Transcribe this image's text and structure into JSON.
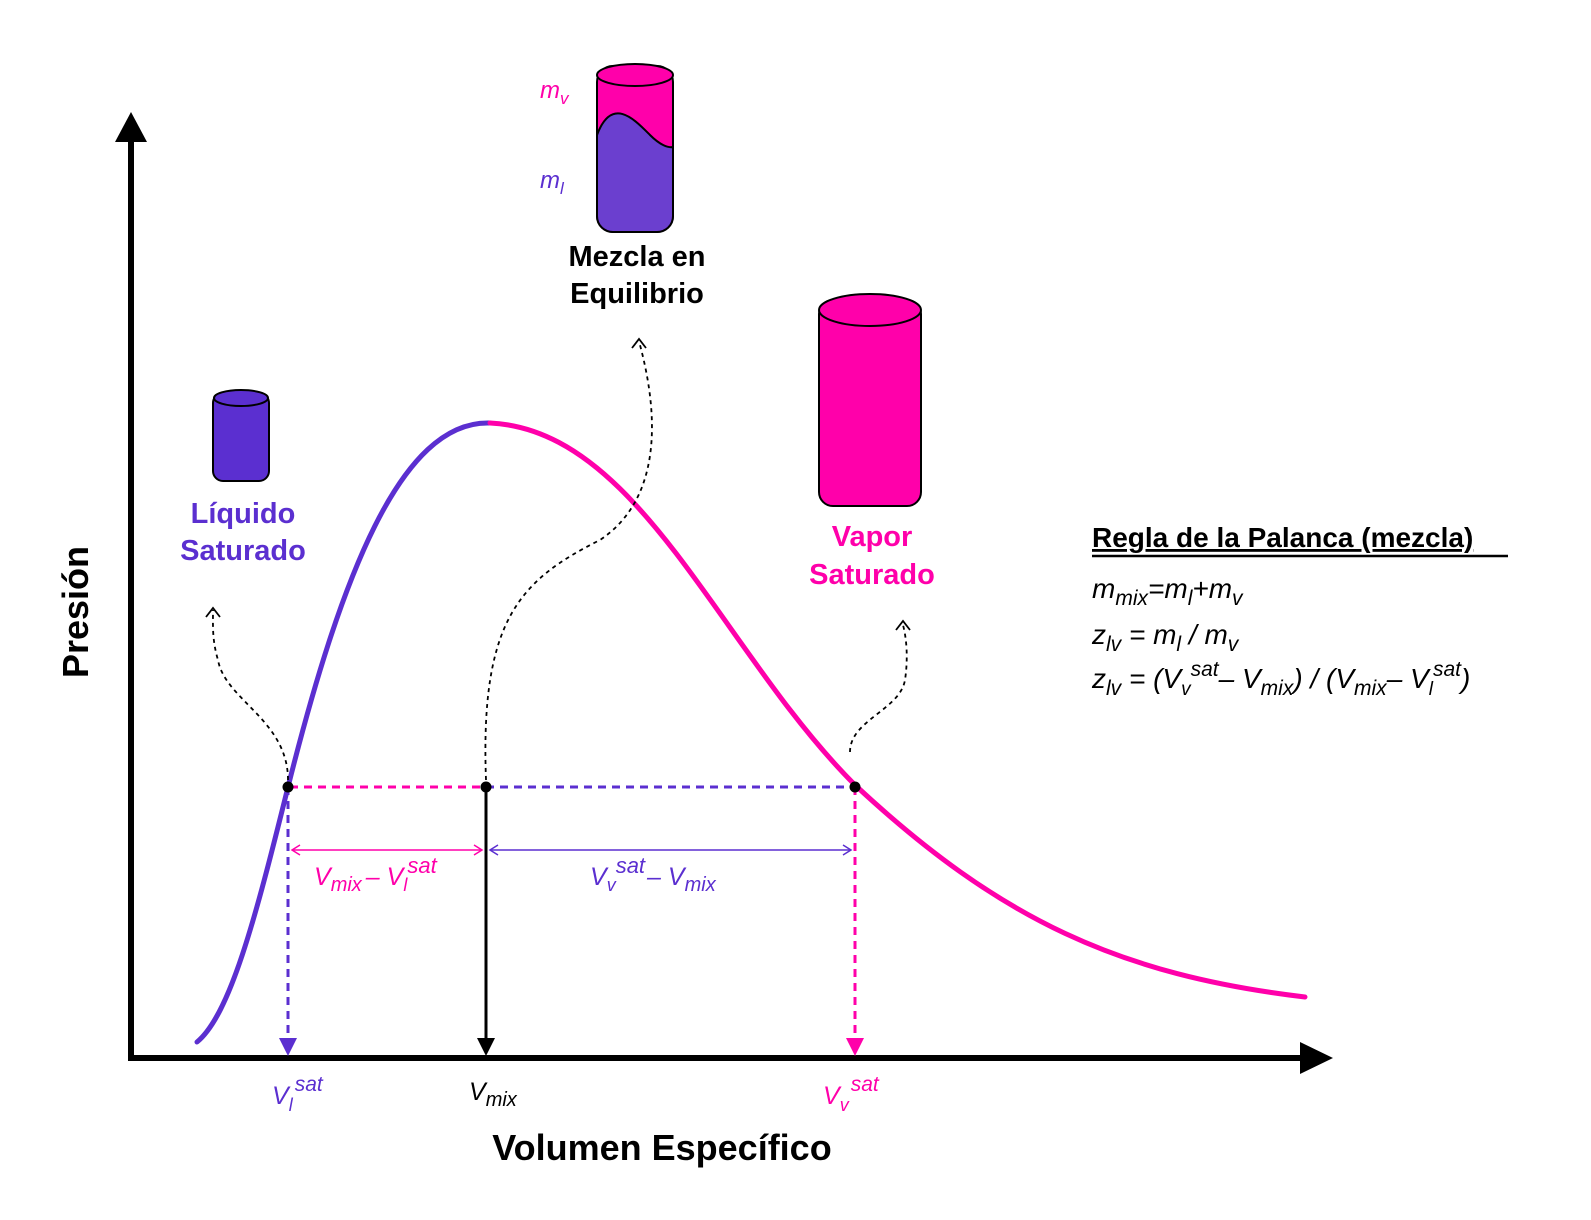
{
  "colors": {
    "liquid": "#5b2fd0",
    "vapor": "#ff00aa",
    "black": "#000000"
  },
  "axes": {
    "y_label": "Presión",
    "x_label": "Volumen Específico"
  },
  "states": {
    "liquid": {
      "line1": "Líquido",
      "line2": "Saturado"
    },
    "vapor": {
      "line1": "Vapor",
      "line2": "Saturado"
    },
    "mixture": {
      "line1": "Mezcla en",
      "line2": "Equilibrio",
      "mv_base": "m",
      "mv_sub": "v",
      "ml_base": "m",
      "ml_sub": "l"
    }
  },
  "ticks": {
    "vl_sat": {
      "base": "V",
      "sub": "l",
      "sup": "sat"
    },
    "vmix": {
      "base": "V",
      "sub": "mix"
    },
    "vv_sat": {
      "base": "V",
      "sub": "v",
      "sup": "sat"
    }
  },
  "spans": {
    "left": {
      "a": "V",
      "a_sub": "mix",
      "op": "– ",
      "b": "V",
      "b_sub": "l",
      "b_sup": "sat"
    },
    "right": {
      "a": "V",
      "a_sub": "v",
      "a_sup": "sat",
      "op": "– ",
      "b": "V",
      "b_sub": "mix"
    }
  },
  "lever_rule": {
    "title": "Regla de la Palanca (mezcla)",
    "eq1": {
      "a": "m",
      "a_sub": "mix",
      "eq": "=",
      "b": "m",
      "b_sub": "l",
      "plus": "+",
      "c": "m",
      "c_sub": "v"
    },
    "eq2": {
      "a": "z",
      "a_sub": "lv",
      "eq": " = ",
      "b": "m",
      "b_sub": "l",
      "div": " / ",
      "c": "m",
      "c_sub": "v"
    },
    "eq3": {
      "a": "z",
      "a_sub": "lv",
      "eq": " = (",
      "b": "V",
      "b_sub": "v",
      "b_sup": "sat",
      "minus1": "– ",
      "c": "V",
      "c_sub": "mix",
      "mid": ") / (",
      "d": "V",
      "d_sub": "mix",
      "minus2": "– ",
      "e": "V",
      "e_sub": "l",
      "e_sup": "sat",
      "close": ")"
    }
  }
}
